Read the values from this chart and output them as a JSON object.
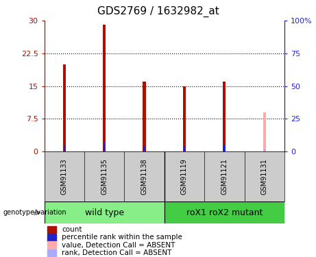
{
  "title": "GDS2769 / 1632982_at",
  "samples": [
    "GSM91133",
    "GSM91135",
    "GSM91138",
    "GSM91119",
    "GSM91121",
    "GSM91131"
  ],
  "red_values": [
    20.0,
    29.0,
    16.0,
    15.0,
    16.0,
    0
  ],
  "blue_values": [
    5.0,
    7.5,
    4.0,
    4.0,
    5.0,
    0
  ],
  "pink_value": 9.0,
  "lightblue_value": 2.0,
  "absent_idx": 5,
  "ylim_left": [
    0,
    30
  ],
  "ylim_right": [
    0,
    100
  ],
  "yticks_left": [
    0,
    7.5,
    15,
    22.5,
    30
  ],
  "yticks_right": [
    0,
    25,
    50,
    75,
    100
  ],
  "ytick_labels_left": [
    "0",
    "7.5",
    "15",
    "22.5",
    "30"
  ],
  "ytick_labels_right": [
    "0",
    "25",
    "50",
    "75",
    "100%"
  ],
  "groups": [
    {
      "label": "wild type",
      "indices": [
        0,
        1,
        2
      ],
      "color": "#88ee88"
    },
    {
      "label": "roX1 roX2 mutant",
      "indices": [
        3,
        4,
        5
      ],
      "color": "#44cc44"
    }
  ],
  "bar_width": 0.07,
  "blue_marker_size": 5,
  "red_color": "#aa1100",
  "blue_color": "#2222cc",
  "pink_color": "#ffaaaa",
  "lightblue_color": "#aaaaff",
  "bg_color": "#ffffff",
  "label_bg": "#cccccc",
  "legend_items": [
    {
      "color": "#aa1100",
      "label": "count"
    },
    {
      "color": "#2222cc",
      "label": "percentile rank within the sample"
    },
    {
      "color": "#ffaaaa",
      "label": "value, Detection Call = ABSENT"
    },
    {
      "color": "#aaaaff",
      "label": "rank, Detection Call = ABSENT"
    }
  ],
  "arrow_label": "genotype/variation",
  "title_fontsize": 11,
  "tick_fontsize": 8,
  "legend_fontsize": 7.5,
  "sample_fontsize": 7,
  "group_fontsize": 9
}
